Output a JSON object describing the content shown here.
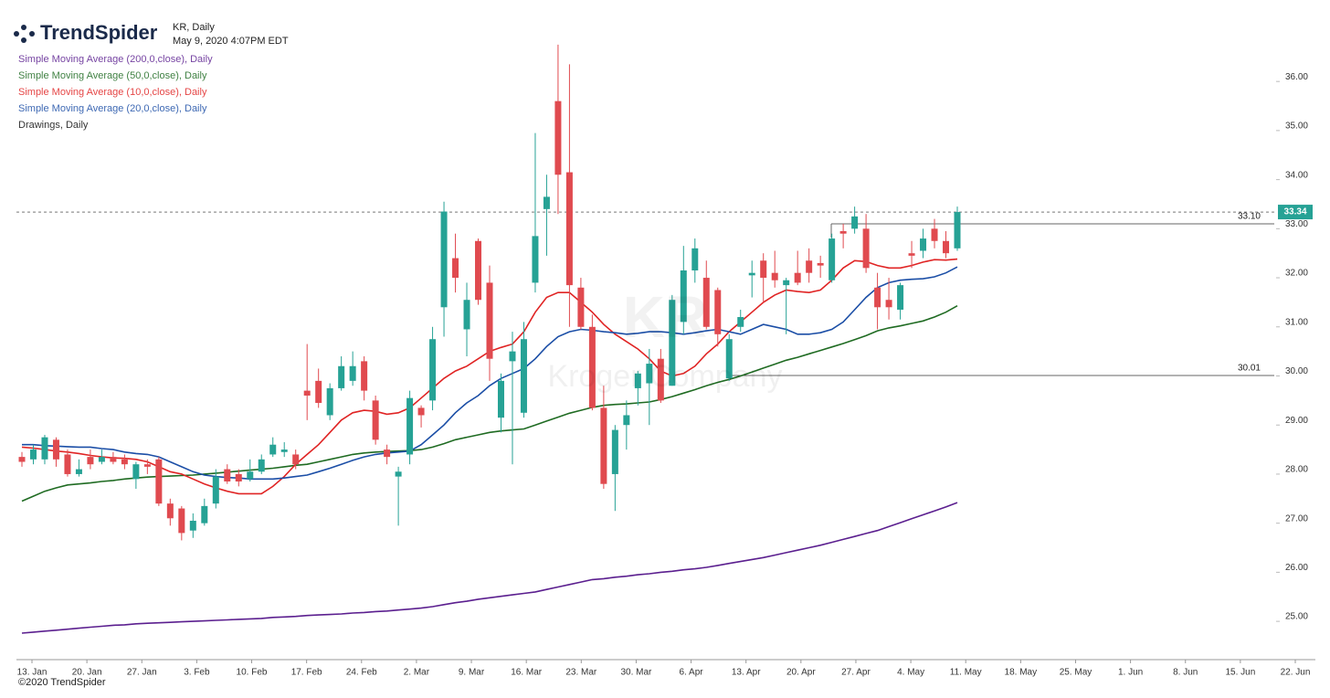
{
  "chart_data": {
    "type": "candlestick",
    "brand": "TrendSpider",
    "symbol": "KR, Daily",
    "timestamp": "May 9, 2020 4:07PM EDT",
    "drawings_label": "Drawings, Daily",
    "watermark": {
      "symbol": "KR",
      "name": "Kroger Company"
    },
    "footer": "©2020 TrendSpider",
    "up_color": "#26a295",
    "down_color": "#e04a4f",
    "ylim": [
      24.22,
      37.66
    ],
    "yticks": [
      {
        "value": 25,
        "label": "25.00"
      },
      {
        "value": 26,
        "label": "26.00"
      },
      {
        "value": 27,
        "label": "27.00"
      },
      {
        "value": 28,
        "label": "28.00"
      },
      {
        "value": 29,
        "label": "29.00"
      },
      {
        "value": 30,
        "label": "30.00"
      },
      {
        "value": 31,
        "label": "31.00"
      },
      {
        "value": 32,
        "label": "32.00"
      },
      {
        "value": 33,
        "label": "33.00"
      },
      {
        "value": 34,
        "label": "34.00"
      },
      {
        "value": 35,
        "label": "35.00"
      },
      {
        "value": 36,
        "label": "36.00"
      }
    ],
    "xticks": [
      "13. Jan",
      "20. Jan",
      "27. Jan",
      "3. Feb",
      "10. Feb",
      "17. Feb",
      "24. Feb",
      "2. Mar",
      "9. Mar",
      "16. Mar",
      "23. Mar",
      "30. Mar",
      "6. Apr",
      "13. Apr",
      "20. Apr",
      "27. Apr",
      "4. May",
      "11. May",
      "18. May",
      "25. May",
      "1. Jun",
      "8. Jun",
      "15. Jun",
      "22. Jun"
    ],
    "last_price": 33.34,
    "levels": [
      {
        "value": 33.1,
        "label": "33.10"
      },
      30.01
    ],
    "candles": {
      "open": [
        28.35,
        28.3,
        28.3,
        28.7,
        28.4,
        28.0,
        28.35,
        28.25,
        28.35,
        28.3,
        27.9,
        28.2,
        28.3,
        27.4,
        27.3,
        26.85,
        27.0,
        27.4,
        28.1,
        28.0,
        27.9,
        28.05,
        28.4,
        28.45,
        28.4,
        29.7,
        29.9,
        29.2,
        29.75,
        29.9,
        30.3,
        29.5,
        28.5,
        27.95,
        28.4,
        29.35,
        29.5,
        31.4,
        32.4,
        30.95,
        32.75,
        31.9,
        29.15,
        30.3,
        29.25,
        31.9,
        33.4,
        35.6,
        34.15,
        31.8,
        31.0,
        29.35,
        28.0,
        29.0,
        29.75,
        29.85,
        30.35,
        29.8,
        31.1,
        32.15,
        32.0,
        31.75,
        29.95,
        31.0,
        32.05,
        32.35,
        32.1,
        31.85,
        32.1,
        32.35,
        32.3,
        31.95,
        32.95,
        33.0,
        33.0,
        31.8,
        31.55,
        31.35,
        32.5,
        32.55,
        33.0,
        32.75,
        32.6
      ],
      "high": [
        28.45,
        28.6,
        28.8,
        28.75,
        28.5,
        28.3,
        28.5,
        28.5,
        28.45,
        28.4,
        28.25,
        28.3,
        28.35,
        27.5,
        27.35,
        27.2,
        27.5,
        28.1,
        28.2,
        28.1,
        28.3,
        28.4,
        28.75,
        28.65,
        28.5,
        30.65,
        30.15,
        29.85,
        30.4,
        30.5,
        30.4,
        29.6,
        28.6,
        28.15,
        29.7,
        29.4,
        31.0,
        33.55,
        32.9,
        31.9,
        32.8,
        32.25,
        30.05,
        30.9,
        31.1,
        34.95,
        34.1,
        36.75,
        36.35,
        32.0,
        31.25,
        29.8,
        29.0,
        29.5,
        30.1,
        30.55,
        30.55,
        31.65,
        32.65,
        32.8,
        32.35,
        31.8,
        30.85,
        31.35,
        32.35,
        32.5,
        32.55,
        32.0,
        32.55,
        32.6,
        32.45,
        32.9,
        33.1,
        33.45,
        33.3,
        32.1,
        32.0,
        31.9,
        32.75,
        33.0,
        33.2,
        32.95,
        33.45
      ],
      "low": [
        28.15,
        28.2,
        28.2,
        28.15,
        27.95,
        27.95,
        28.1,
        28.2,
        28.2,
        28.1,
        27.7,
        28.0,
        27.35,
        26.95,
        26.65,
        26.7,
        26.95,
        27.3,
        27.8,
        27.75,
        27.85,
        28.0,
        28.35,
        28.35,
        28.1,
        29.1,
        29.35,
        29.1,
        29.7,
        29.8,
        29.5,
        28.6,
        28.2,
        26.95,
        28.2,
        28.95,
        29.3,
        30.8,
        31.7,
        30.4,
        31.45,
        29.9,
        28.85,
        28.2,
        29.15,
        31.7,
        32.45,
        33.3,
        31.0,
        30.95,
        29.3,
        27.7,
        27.25,
        28.5,
        29.4,
        29.0,
        29.45,
        29.8,
        30.85,
        31.9,
        30.95,
        30.6,
        29.9,
        30.9,
        31.6,
        31.5,
        31.8,
        30.85,
        31.85,
        31.9,
        32.0,
        31.9,
        32.6,
        32.9,
        32.1,
        30.95,
        31.15,
        31.15,
        32.2,
        32.4,
        32.6,
        32.4,
        32.55
      ],
      "close": [
        28.25,
        28.5,
        28.75,
        28.3,
        28.0,
        28.1,
        28.2,
        28.35,
        28.25,
        28.2,
        28.2,
        28.15,
        27.4,
        27.1,
        26.8,
        27.05,
        27.35,
        27.95,
        27.85,
        27.85,
        28.05,
        28.3,
        28.6,
        28.5,
        28.2,
        29.6,
        29.45,
        29.75,
        30.2,
        30.2,
        29.7,
        28.7,
        28.35,
        28.05,
        29.55,
        29.2,
        30.75,
        33.35,
        32.0,
        31.55,
        31.55,
        30.35,
        29.9,
        30.5,
        30.75,
        32.85,
        33.65,
        34.1,
        31.85,
        31.0,
        29.35,
        27.8,
        28.9,
        29.2,
        30.05,
        30.25,
        29.5,
        31.55,
        32.15,
        32.6,
        31.0,
        30.85,
        30.75,
        31.2,
        32.1,
        32.0,
        31.95,
        31.95,
        31.9,
        32.1,
        32.25,
        32.8,
        32.9,
        33.25,
        32.2,
        31.4,
        31.4,
        31.85,
        32.45,
        32.8,
        32.75,
        32.5,
        33.34
      ]
    },
    "series": [
      {
        "name": "Simple Moving Average (200,0,close), Daily",
        "color": "#5b1f8f",
        "values": [
          24.76,
          24.78,
          24.8,
          24.82,
          24.84,
          24.86,
          24.88,
          24.9,
          24.92,
          24.93,
          24.95,
          24.96,
          24.97,
          24.98,
          24.99,
          25.0,
          25.01,
          25.02,
          25.03,
          25.04,
          25.05,
          25.06,
          25.08,
          25.09,
          25.1,
          25.12,
          25.13,
          25.14,
          25.15,
          25.17,
          25.18,
          25.2,
          25.21,
          25.23,
          25.25,
          25.27,
          25.3,
          25.34,
          25.38,
          25.41,
          25.45,
          25.48,
          25.51,
          25.54,
          25.57,
          25.6,
          25.65,
          25.7,
          25.75,
          25.8,
          25.85,
          25.87,
          25.9,
          25.92,
          25.95,
          25.97,
          26.0,
          26.02,
          26.05,
          26.07,
          26.1,
          26.14,
          26.18,
          26.22,
          26.26,
          26.3,
          26.35,
          26.4,
          26.45,
          26.5,
          26.55,
          26.61,
          26.67,
          26.73,
          26.79,
          26.85,
          26.93,
          27.01,
          27.09,
          27.17,
          27.25,
          27.33,
          27.42
        ]
      },
      {
        "name": "Simple Moving Average (50,0,close), Daily",
        "color": "#1f6b22",
        "values": [
          27.45,
          27.55,
          27.65,
          27.72,
          27.78,
          27.8,
          27.82,
          27.85,
          27.87,
          27.9,
          27.92,
          27.94,
          27.95,
          27.96,
          27.97,
          27.98,
          28.0,
          28.02,
          28.04,
          28.06,
          28.08,
          28.1,
          28.12,
          28.15,
          28.18,
          28.2,
          28.25,
          28.3,
          28.35,
          28.4,
          28.43,
          28.45,
          28.46,
          28.47,
          28.48,
          28.5,
          28.55,
          28.62,
          28.7,
          28.75,
          28.8,
          28.85,
          28.88,
          28.9,
          28.92,
          29.0,
          29.08,
          29.16,
          29.24,
          29.3,
          29.36,
          29.4,
          29.42,
          29.43,
          29.45,
          29.47,
          29.52,
          29.58,
          29.65,
          29.72,
          29.8,
          29.87,
          29.93,
          30.0,
          30.08,
          30.16,
          30.24,
          30.32,
          30.38,
          30.45,
          30.52,
          30.59,
          30.66,
          30.74,
          30.82,
          30.92,
          30.98,
          31.02,
          31.07,
          31.12,
          31.2,
          31.3,
          31.43
        ]
      },
      {
        "name": "Simple Moving Average (10,0,close), Daily",
        "color": "#e02424",
        "values": [
          28.55,
          28.53,
          28.5,
          28.47,
          28.45,
          28.42,
          28.38,
          28.35,
          28.33,
          28.32,
          28.3,
          28.25,
          28.15,
          28.05,
          28.0,
          27.9,
          27.8,
          27.72,
          27.65,
          27.6,
          27.6,
          27.6,
          27.75,
          27.95,
          28.2,
          28.4,
          28.6,
          28.85,
          29.1,
          29.25,
          29.3,
          29.28,
          29.22,
          29.25,
          29.35,
          29.55,
          29.75,
          29.95,
          30.1,
          30.2,
          30.35,
          30.5,
          30.58,
          30.65,
          30.9,
          31.3,
          31.6,
          31.7,
          31.7,
          31.5,
          31.3,
          31.05,
          30.85,
          30.7,
          30.55,
          30.35,
          30.1,
          30.0,
          30.05,
          30.2,
          30.45,
          30.65,
          30.9,
          31.1,
          31.3,
          31.5,
          31.65,
          31.75,
          31.72,
          31.7,
          31.75,
          31.95,
          32.2,
          32.35,
          32.33,
          32.25,
          32.2,
          32.2,
          32.25,
          32.32,
          32.37,
          32.36,
          32.38
        ]
      },
      {
        "name": "Simple Moving Average (20,0,close), Daily",
        "color": "#1b4ea6",
        "values": [
          28.6,
          28.6,
          28.58,
          28.57,
          28.56,
          28.55,
          28.55,
          28.52,
          28.5,
          28.45,
          28.42,
          28.4,
          28.35,
          28.25,
          28.15,
          28.05,
          27.98,
          27.95,
          27.93,
          27.92,
          27.9,
          27.9,
          27.9,
          27.92,
          27.95,
          27.98,
          28.05,
          28.12,
          28.2,
          28.28,
          28.35,
          28.4,
          28.43,
          28.45,
          28.47,
          28.6,
          28.8,
          29.0,
          29.25,
          29.45,
          29.6,
          29.8,
          29.95,
          30.05,
          30.15,
          30.35,
          30.6,
          30.8,
          30.9,
          30.95,
          30.93,
          30.9,
          30.88,
          30.85,
          30.87,
          30.9,
          30.9,
          30.88,
          30.85,
          30.88,
          30.92,
          30.95,
          30.9,
          30.85,
          30.95,
          31.05,
          31.0,
          30.95,
          30.85,
          30.85,
          30.88,
          30.95,
          31.1,
          31.35,
          31.6,
          31.8,
          31.9,
          31.95,
          31.97,
          31.98,
          32.02,
          32.1,
          32.22
        ]
      }
    ]
  }
}
